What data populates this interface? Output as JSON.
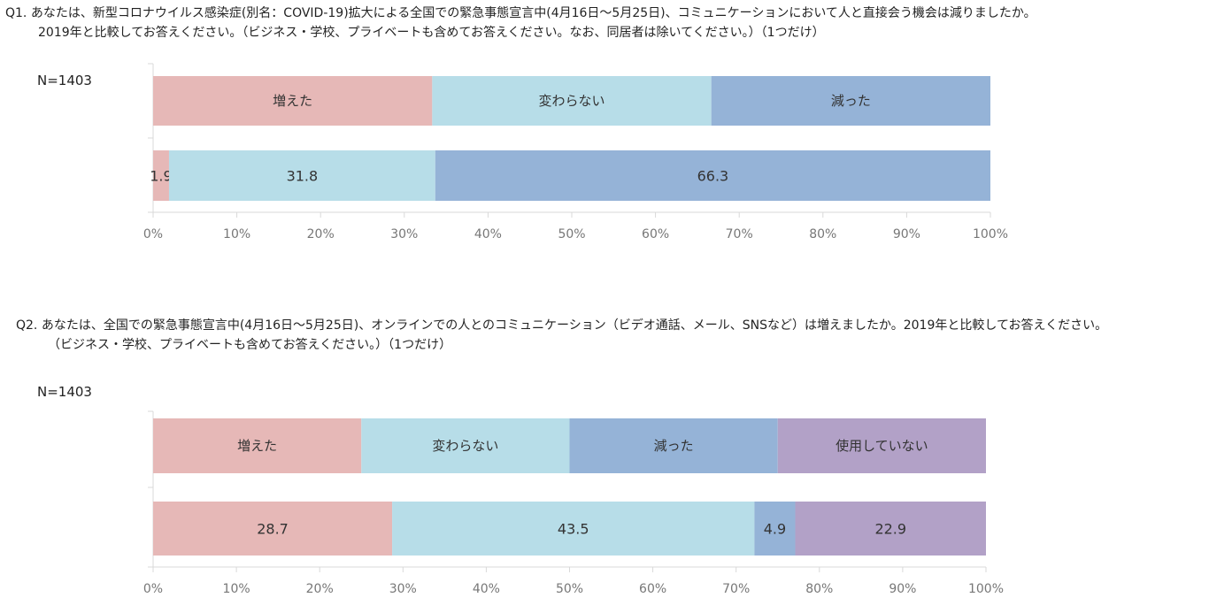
{
  "chart_data": [
    {
      "type": "bar",
      "stacked": true,
      "orientation": "horizontal",
      "title_lines": [
        "Q1. あなたは、新型コロナウイルス感染症(別名：COVID-19)拡大による全国での緊急事態宣言中(4月16日～5月25日)、コミュニケーションにおいて人と直接会う機会は減りましたか。",
        "2019年と比較してお答えください。（ビジネス・学校、プライベートも含めてお答えください。なお、同居者は除いてください。）（1つだけ）"
      ],
      "n_label": "N=1403",
      "legend_position": "top-row",
      "series": [
        {
          "name": "増えた",
          "values": [
            1.9
          ],
          "color": "#e6b8b7"
        },
        {
          "name": "変わらない",
          "values": [
            31.8
          ],
          "color": "#b7dde8"
        },
        {
          "name": "減った",
          "values": [
            66.3
          ],
          "color": "#95b3d7"
        }
      ],
      "xlim": [
        0,
        100
      ],
      "xticks": [
        "0%",
        "10%",
        "20%",
        "30%",
        "40%",
        "50%",
        "60%",
        "70%",
        "80%",
        "90%",
        "100%"
      ]
    },
    {
      "type": "bar",
      "stacked": true,
      "orientation": "horizontal",
      "title_lines": [
        "Q2. あなたは、全国での緊急事態宣言中(4月16日～5月25日)、オンラインでの人とのコミュニケーション（ビデオ通話、メール、SNSなど）は増えましたか。2019年と比較してお答えください。",
        "（ビジネス・学校、プライベートも含めてお答えください。）（1つだけ）"
      ],
      "n_label": "N=1403",
      "legend_position": "top-row",
      "series": [
        {
          "name": "増えた",
          "values": [
            28.7
          ],
          "color": "#e6b8b7"
        },
        {
          "name": "変わらない",
          "values": [
            43.5
          ],
          "color": "#b7dde8"
        },
        {
          "name": "減った",
          "values": [
            4.9
          ],
          "color": "#95b3d7"
        },
        {
          "name": "使用していない",
          "values": [
            22.9
          ],
          "color": "#b2a1c7"
        }
      ],
      "xlim": [
        0,
        100
      ],
      "xticks": [
        "0%",
        "10%",
        "20%",
        "30%",
        "40%",
        "50%",
        "60%",
        "70%",
        "80%",
        "90%",
        "100%"
      ]
    }
  ]
}
